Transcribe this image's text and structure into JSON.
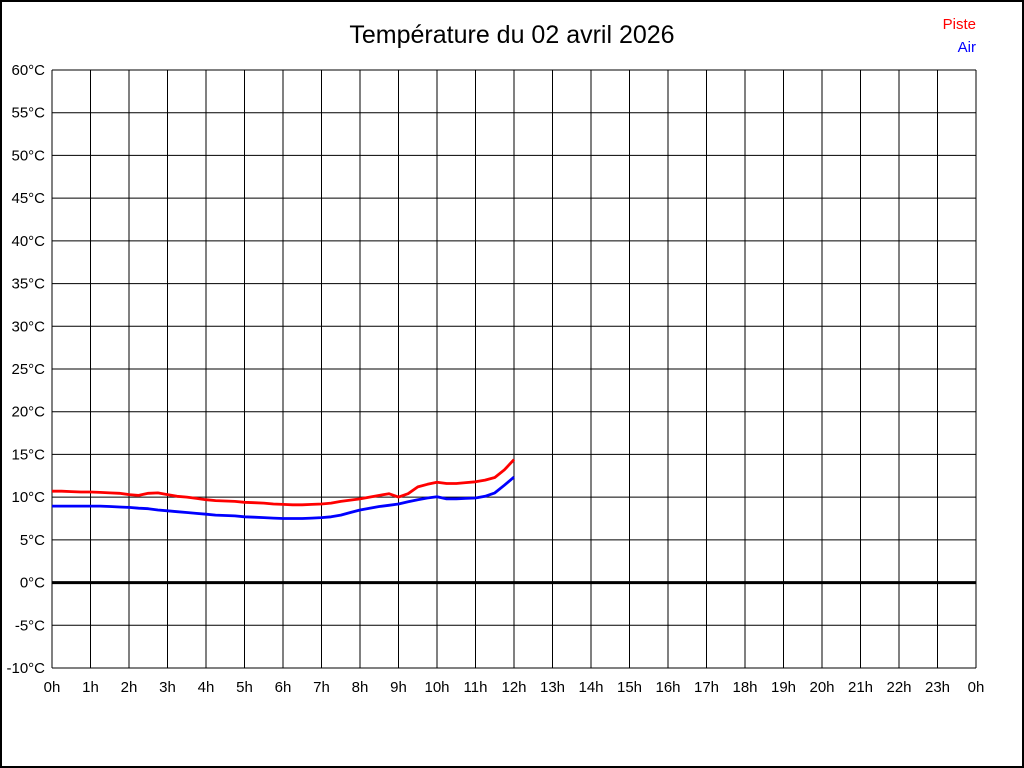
{
  "window": {
    "background_color": "#ffffff",
    "border_color": "#000000"
  },
  "header": {
    "title": "Température du 02 avril 2026"
  },
  "legend": {
    "position": "top-right",
    "items": [
      {
        "label": "Piste",
        "color": "#ff0000"
      },
      {
        "label": "Air",
        "color": "#0000ff"
      }
    ]
  },
  "chart_data": {
    "type": "line",
    "title": "Température du 02 avril 2026",
    "xlabel": "",
    "ylabel": "",
    "grid": true,
    "grid_color": "#000000",
    "zero_line_bold": true,
    "xlim_hours": [
      0,
      24
    ],
    "ylim": [
      -10,
      60
    ],
    "y_tick_step": 5,
    "y_tick_labels": [
      "60°C",
      "55°C",
      "50°C",
      "45°C",
      "40°C",
      "35°C",
      "30°C",
      "25°C",
      "20°C",
      "15°C",
      "10°C",
      "5°C",
      "0°C",
      "-5°C",
      "-10°C"
    ],
    "x_tick_labels": [
      "0h",
      "1h",
      "2h",
      "3h",
      "4h",
      "5h",
      "6h",
      "7h",
      "8h",
      "9h",
      "10h",
      "11h",
      "12h",
      "13h",
      "14h",
      "15h",
      "16h",
      "17h",
      "18h",
      "19h",
      "20h",
      "21h",
      "22h",
      "23h",
      "0h"
    ],
    "x_hours": [
      0,
      0.25,
      0.5,
      0.75,
      1,
      1.25,
      1.5,
      1.75,
      2,
      2.25,
      2.5,
      2.75,
      3,
      3.25,
      3.5,
      3.75,
      4,
      4.25,
      4.5,
      4.75,
      5,
      5.25,
      5.5,
      5.75,
      6,
      6.25,
      6.5,
      6.75,
      7,
      7.25,
      7.5,
      7.75,
      8,
      8.25,
      8.5,
      8.75,
      9,
      9.25,
      9.5,
      9.75,
      10,
      10.25,
      10.5,
      10.75,
      11,
      11.25,
      11.5,
      11.75,
      12
    ],
    "series": [
      {
        "name": "Piste",
        "color": "#ff0000",
        "values": [
          10.7,
          10.7,
          10.65,
          10.6,
          10.6,
          10.55,
          10.5,
          10.45,
          10.3,
          10.2,
          10.45,
          10.5,
          10.3,
          10.1,
          10.0,
          9.85,
          9.7,
          9.6,
          9.55,
          9.5,
          9.4,
          9.35,
          9.3,
          9.2,
          9.15,
          9.1,
          9.1,
          9.15,
          9.2,
          9.3,
          9.5,
          9.65,
          9.8,
          10.0,
          10.2,
          10.4,
          10.0,
          10.4,
          11.2,
          11.5,
          11.75,
          11.6,
          11.6,
          11.7,
          11.8,
          12.0,
          12.3,
          13.2,
          14.4
        ]
      },
      {
        "name": "Air",
        "color": "#0000ff",
        "values": [
          8.95,
          8.95,
          8.95,
          8.95,
          8.95,
          8.95,
          8.9,
          8.85,
          8.8,
          8.7,
          8.65,
          8.5,
          8.4,
          8.3,
          8.2,
          8.1,
          8.0,
          7.9,
          7.85,
          7.8,
          7.7,
          7.65,
          7.6,
          7.55,
          7.5,
          7.5,
          7.5,
          7.55,
          7.6,
          7.7,
          7.9,
          8.2,
          8.5,
          8.7,
          8.9,
          9.05,
          9.2,
          9.45,
          9.7,
          9.9,
          10.05,
          9.8,
          9.8,
          9.85,
          9.9,
          10.1,
          10.5,
          11.4,
          12.35
        ]
      }
    ]
  }
}
